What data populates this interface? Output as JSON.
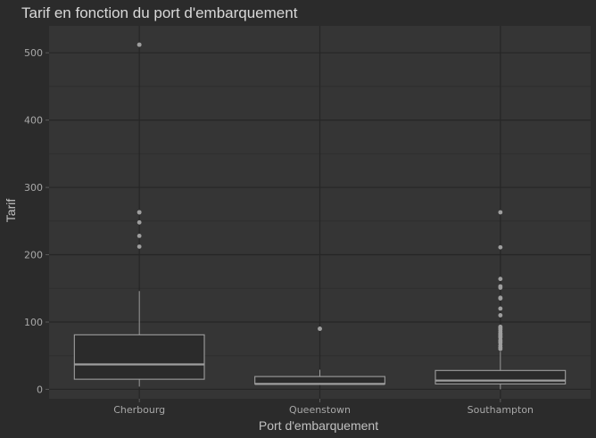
{
  "chart_data": {
    "type": "boxplot",
    "title": "Tarif en fonction du port d'embarquement",
    "xlabel": "Port d'embarquement",
    "ylabel": "Tarif",
    "ylim": [
      -14,
      540
    ],
    "yticks": [
      0,
      100,
      200,
      300,
      400,
      500
    ],
    "grid": true,
    "categories": [
      "Cherbourg",
      "Queenstown",
      "Southampton"
    ],
    "boxes": [
      {
        "category": "Cherbourg",
        "q1": 15,
        "median": 37,
        "q3": 81,
        "whisker_low": 4,
        "whisker_high": 146,
        "outliers": [
          212,
          228,
          248,
          263,
          263,
          512,
          512
        ]
      },
      {
        "category": "Queenstown",
        "q1": 8,
        "median": 8,
        "q3": 19,
        "whisker_low": 7,
        "whisker_high": 29,
        "outliers": [
          90,
          90
        ]
      },
      {
        "category": "Southampton",
        "q1": 8,
        "median": 13,
        "q3": 28,
        "whisker_low": 0,
        "whisker_high": 56,
        "outliers": [
          60,
          62,
          65,
          69,
          71,
          73,
          77,
          78,
          80,
          82,
          83,
          86,
          89,
          91,
          93,
          110,
          120,
          135,
          136,
          151,
          153,
          164,
          211,
          263
        ]
      }
    ],
    "colors": {
      "background": "#2b2b2b",
      "panel": "#353535",
      "grid_major": "#262626",
      "grid_minor": "#2f2f2f",
      "box_fill": "#2b2b2b",
      "box_stroke": "#9e9e9e",
      "outlier": "#9e9e9e"
    }
  }
}
